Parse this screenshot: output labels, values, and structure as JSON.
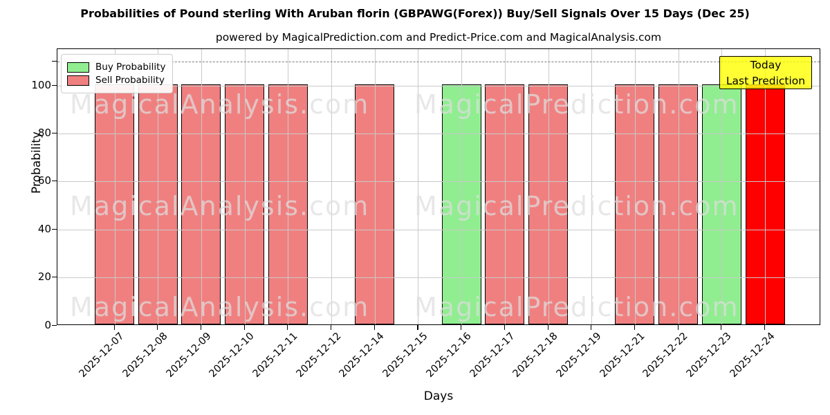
{
  "header": {
    "title": "Probabilities of Pound sterling With Aruban florin (GBPAWG(Forex)) Buy/Sell Signals Over 15 Days (Dec 25)",
    "subtitle": "powered by MagicalPrediction.com and Predict-Price.com and MagicalAnalysis.com"
  },
  "legend": {
    "items": [
      {
        "label": "Buy Probability",
        "color": "#90ee90"
      },
      {
        "label": "Sell Probability",
        "color": "#f08080"
      }
    ]
  },
  "annotation": {
    "lines": [
      "Today",
      "Last Prediction"
    ],
    "bg_color": "#ffff00",
    "border_color": "#000000"
  },
  "watermarks": {
    "left": "MagicalAnalysis.com",
    "right": "MagicalPrediction.com"
  },
  "chart_data": {
    "type": "bar",
    "title": "Probabilities of Pound sterling With Aruban florin (GBPAWG(Forex)) Buy/Sell Signals Over 15 Days (Dec 25)",
    "xlabel": "Days",
    "ylabel": "Probability",
    "categories": [
      "2025-12-07",
      "2025-12-08",
      "2025-12-09",
      "2025-12-10",
      "2025-12-11",
      "2025-12-12",
      "2025-12-14",
      "2025-12-15",
      "2025-12-16",
      "2025-12-17",
      "2025-12-18",
      "2025-12-19",
      "2025-12-21",
      "2025-12-22",
      "2025-12-23",
      "2025-12-24"
    ],
    "series": [
      {
        "name": "Buy Probability",
        "color": "#90ee90",
        "values": [
          0,
          0,
          0,
          0,
          0,
          0,
          0,
          0,
          100,
          0,
          0,
          0,
          0,
          0,
          100,
          0
        ]
      },
      {
        "name": "Sell Probability",
        "color": "#f08080",
        "values": [
          100,
          100,
          100,
          100,
          100,
          0,
          100,
          0,
          0,
          100,
          100,
          0,
          100,
          100,
          0,
          100
        ]
      }
    ],
    "today_index": 15,
    "today_color": "#ff0000",
    "bar_edge_color": "#000000",
    "yticks": [
      0,
      20,
      40,
      60,
      80,
      100
    ],
    "ylim": [
      0,
      115
    ],
    "dashed_line_y": 110,
    "grid": true,
    "legend_position": "upper-left"
  }
}
